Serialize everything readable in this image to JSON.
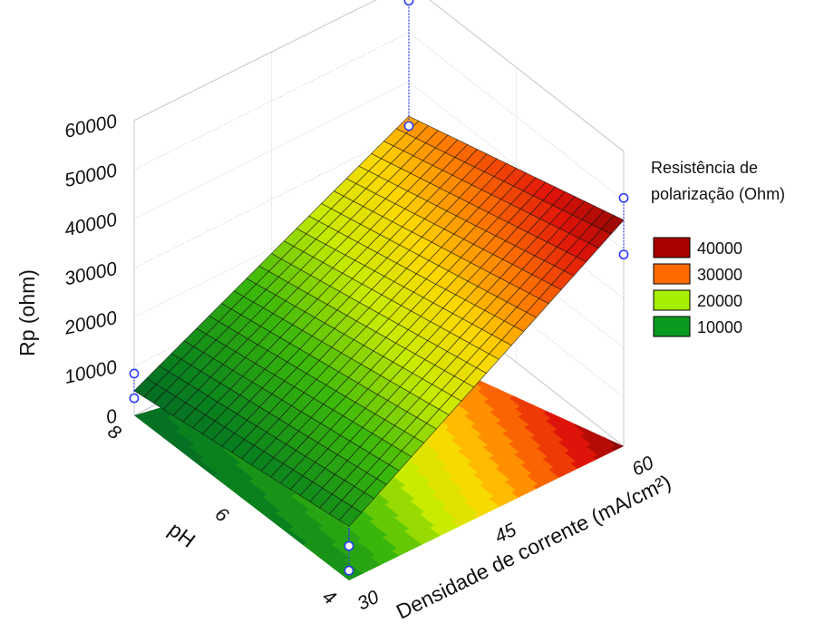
{
  "chart_data": {
    "type": "surface3d",
    "title": "",
    "x_axis": {
      "label": "Densidade de corrente (mA/cm²)",
      "ticks": [
        30,
        45,
        60
      ],
      "range": [
        30,
        60
      ]
    },
    "y_axis": {
      "label": "pH",
      "ticks": [
        4,
        6,
        8
      ],
      "range": [
        4,
        8
      ]
    },
    "z_axis": {
      "label": "Rp (ohm)",
      "ticks": [
        0,
        10000,
        20000,
        30000,
        40000,
        50000,
        60000
      ],
      "range": [
        0,
        60000
      ]
    },
    "model": {
      "corner_values": [
        {
          "x": 30,
          "y": 4,
          "z": 11000
        },
        {
          "x": 60,
          "y": 4,
          "z": 46000
        },
        {
          "x": 60,
          "y": 8,
          "z": 33000
        },
        {
          "x": 30,
          "y": 8,
          "z": 5000
        }
      ]
    },
    "observed_points": [
      {
        "x": 30,
        "y": 8,
        "z": 3500
      },
      {
        "x": 30,
        "y": 8,
        "z": 8500
      },
      {
        "x": 30,
        "y": 4,
        "z": 2000
      },
      {
        "x": 30,
        "y": 4,
        "z": 7000
      },
      {
        "x": 60,
        "y": 8,
        "z": 31000
      },
      {
        "x": 60,
        "y": 8,
        "z": 56500
      },
      {
        "x": 60,
        "y": 4,
        "z": 39000
      },
      {
        "x": 60,
        "y": 4,
        "z": 50500
      }
    ],
    "legend": {
      "title_lines": [
        "Resistência de",
        "polarização (Ohm)"
      ],
      "placement": "right",
      "entries": [
        {
          "label": "40000",
          "color": "#a80000"
        },
        {
          "label": "30000",
          "color": "#ff6a00"
        },
        {
          "label": "20000",
          "color": "#a6ee00"
        },
        {
          "label": "10000",
          "color": "#0a9a20"
        }
      ]
    },
    "colors": {
      "point_stroke": "#2b3bff",
      "grid": "#c8c8c8",
      "mesh": "#101010"
    }
  }
}
